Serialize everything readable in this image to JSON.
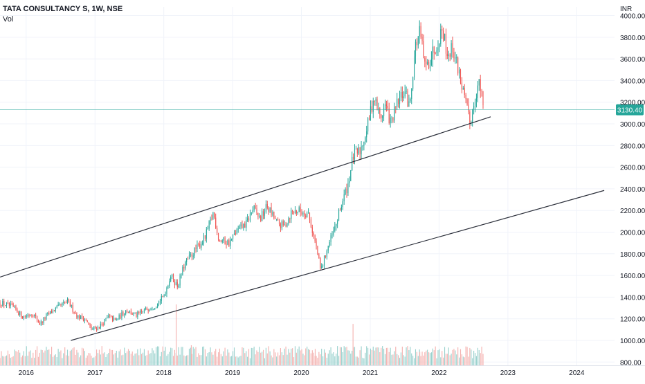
{
  "chart_data": {
    "type": "candlestick",
    "title": "TATA CONSULTANCY S, 1W, NSE",
    "volume_label": "Vol",
    "currency": "INR",
    "last_price": "3130.40",
    "last_price_value": 3130.4,
    "y_ticks": [
      800,
      1000,
      1200,
      1400,
      1600,
      1800,
      2000,
      2200,
      2400,
      2600,
      2800,
      3000,
      3200,
      3400,
      3600,
      3800,
      4000
    ],
    "y_tick_labels": [
      "800.00",
      "1000.00",
      "1200.00",
      "1400.00",
      "1600.00",
      "1800.00",
      "2000.00",
      "2200.00",
      "2400.00",
      "2600.00",
      "2800.00",
      "3000.00",
      "3200.00",
      "3400.00",
      "3600.00",
      "3800.00",
      "4000.00"
    ],
    "ylim": [
      770,
      4080
    ],
    "x_tick_labels": [
      "2016",
      "2017",
      "2018",
      "2019",
      "2020",
      "2021",
      "2022",
      "2023",
      "2024"
    ],
    "x_tick_years": [
      2016,
      2017,
      2018,
      2019,
      2020,
      2021,
      2022,
      2023,
      2024
    ],
    "xlim": [
      2015.62,
      2024.55
    ],
    "price_path": [
      [
        2015.62,
        1350
      ],
      [
        2015.8,
        1310
      ],
      [
        2015.95,
        1220
      ],
      [
        2016.1,
        1250
      ],
      [
        2016.2,
        1150
      ],
      [
        2016.3,
        1230
      ],
      [
        2016.45,
        1300
      ],
      [
        2016.6,
        1360
      ],
      [
        2016.75,
        1220
      ],
      [
        2016.85,
        1200
      ],
      [
        2016.95,
        1100
      ],
      [
        2017.05,
        1120
      ],
      [
        2017.2,
        1220
      ],
      [
        2017.3,
        1180
      ],
      [
        2017.45,
        1280
      ],
      [
        2017.6,
        1230
      ],
      [
        2017.75,
        1290
      ],
      [
        2017.9,
        1330
      ],
      [
        2018.0,
        1410
      ],
      [
        2018.1,
        1600
      ],
      [
        2018.2,
        1500
      ],
      [
        2018.3,
        1700
      ],
      [
        2018.45,
        1830
      ],
      [
        2018.6,
        1950
      ],
      [
        2018.72,
        2180
      ],
      [
        2018.8,
        1930
      ],
      [
        2018.95,
        1900
      ],
      [
        2019.05,
        2000
      ],
      [
        2019.2,
        2080
      ],
      [
        2019.3,
        2220
      ],
      [
        2019.4,
        2120
      ],
      [
        2019.5,
        2240
      ],
      [
        2019.65,
        2080
      ],
      [
        2019.75,
        2050
      ],
      [
        2019.85,
        2180
      ],
      [
        2019.95,
        2200
      ],
      [
        2020.1,
        2170
      ],
      [
        2020.22,
        1850
      ],
      [
        2020.28,
        1640
      ],
      [
        2020.38,
        1860
      ],
      [
        2020.48,
        2020
      ],
      [
        2020.58,
        2250
      ],
      [
        2020.68,
        2450
      ],
      [
        2020.75,
        2700
      ],
      [
        2020.85,
        2750
      ],
      [
        2020.95,
        2950
      ],
      [
        2021.05,
        3250
      ],
      [
        2021.15,
        3050
      ],
      [
        2021.22,
        3180
      ],
      [
        2021.3,
        3000
      ],
      [
        2021.4,
        3200
      ],
      [
        2021.5,
        3300
      ],
      [
        2021.57,
        3150
      ],
      [
        2021.65,
        3700
      ],
      [
        2021.72,
        3850
      ],
      [
        2021.8,
        3500
      ],
      [
        2021.9,
        3650
      ],
      [
        2021.97,
        3750
      ],
      [
        2022.05,
        3880
      ],
      [
        2022.12,
        3650
      ],
      [
        2022.2,
        3700
      ],
      [
        2022.3,
        3450
      ],
      [
        2022.38,
        3200
      ],
      [
        2022.45,
        3000
      ],
      [
        2022.52,
        3250
      ],
      [
        2022.58,
        3380
      ],
      [
        2022.65,
        3150
      ]
    ],
    "trendlines": [
      {
        "x1": 2015.62,
        "y1": 1585,
        "x2": 2022.75,
        "y2": 3065
      },
      {
        "x1": 2016.65,
        "y1": 1000,
        "x2": 2024.4,
        "y2": 2385
      }
    ],
    "volume_spikes": [
      {
        "x": 2018.18,
        "v": 1.0
      },
      {
        "x": 2020.75,
        "v": 0.68
      },
      {
        "x": 2018.4,
        "v": 0.33
      },
      {
        "x": 2020.2,
        "v": 0.27
      },
      {
        "x": 2021.72,
        "v": 0.22
      }
    ],
    "colors": {
      "up": "#26a69a",
      "down": "#ef5350",
      "vol_up": "#9bd2ce",
      "vol_down": "#f4b3b1",
      "price_line": "#26a69a",
      "trendline": "#2a2e39",
      "axis_text": "#131722"
    }
  }
}
